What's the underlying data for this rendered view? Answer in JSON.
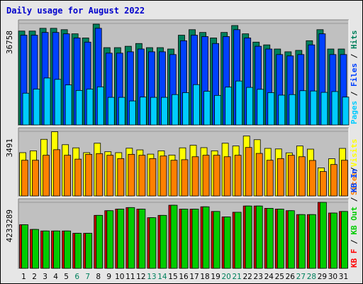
{
  "chart_data": {
    "title": "Daily usage for August 2022",
    "type": "bar",
    "x": [
      "1",
      "2",
      "3",
      "4",
      "5",
      "6",
      "7",
      "8",
      "9",
      "10",
      "11",
      "12",
      "13",
      "14",
      "15",
      "16",
      "17",
      "18",
      "19",
      "20",
      "21",
      "22",
      "23",
      "24",
      "25",
      "26",
      "27",
      "28",
      "29",
      "30",
      "31"
    ],
    "weekend_days": [
      "6",
      "7",
      "13",
      "14",
      "20",
      "21",
      "27",
      "28"
    ],
    "colors": {
      "day_label": "#000000",
      "weekend_label": "#00805c"
    },
    "panels": [
      {
        "name": "hits-files-pages",
        "ymax_label": "36758",
        "ymax": 36758,
        "legend": [
          {
            "text": "Pages",
            "color": "#00ccff"
          },
          {
            "text": "Files",
            "color": "#0040ff"
          },
          {
            "text": "Hits",
            "color": "#00805c"
          }
        ],
        "series": [
          {
            "name": "Hits",
            "color": "#00805c",
            "values": [
              34000,
              34000,
              35000,
              35000,
              34500,
              33000,
              31500,
              36500,
              28000,
              28000,
              28500,
              29500,
              28000,
              28000,
              27500,
              32500,
              34500,
              33500,
              31500,
              33500,
              36000,
              33000,
              30000,
              29000,
              27500,
              26500,
              27000,
              30500,
              34500,
              27500,
              27500
            ]
          },
          {
            "name": "Files",
            "color": "#0040ff",
            "values": [
              32500,
              32500,
              33500,
              33500,
              33000,
              31500,
              30000,
              35000,
              26000,
              26000,
              26500,
              27500,
              26500,
              26500,
              25500,
              30500,
              32500,
              32000,
              29500,
              32000,
              34500,
              31500,
              28500,
              27500,
              25500,
              25000,
              25500,
              29000,
              33000,
              25500,
              25500
            ]
          },
          {
            "name": "Pages",
            "color": "#00ccff",
            "values": [
              11500,
              13000,
              17000,
              16500,
              14500,
              12500,
              13000,
              13800,
              10000,
              10000,
              8700,
              10100,
              10000,
              10000,
              11000,
              11700,
              14600,
              12200,
              10700,
              13700,
              15900,
              13600,
              12900,
              11700,
              10800,
              11000,
              12400,
              12300,
              11800,
              12100,
              10100
            ]
          }
        ]
      },
      {
        "name": "visits-sites",
        "ymax_label": "3491",
        "ymax": 3491,
        "legend": [
          {
            "text": "Sites",
            "color": "#ff8000"
          },
          {
            "text": "/",
            "color": "#000000"
          },
          {
            "text": "Visits",
            "color": "#ffff00"
          }
        ],
        "series": [
          {
            "name": "Visits",
            "color": "#ffff00",
            "values": [
              2340,
              2440,
              3060,
              3470,
              2770,
              2600,
              2340,
              2850,
              2390,
              2340,
              2580,
              2490,
              2260,
              2440,
              2210,
              2600,
              2740,
              2610,
              2440,
              2850,
              2700,
              3240,
              3040,
              2570,
              2540,
              2330,
              2700,
              2530,
              1520,
              2010,
              2570
            ]
          },
          {
            "name": "Sites",
            "color": "#ff8000",
            "values": [
              1930,
              1930,
              2200,
              2500,
              2200,
              1990,
              2250,
              2290,
              2200,
              2020,
              2250,
              2200,
              2020,
              2160,
              1930,
              1960,
              2120,
              2200,
              2200,
              2120,
              2200,
              2620,
              2300,
              1930,
              2020,
              2200,
              2120,
              1920,
              1320,
              1700,
              1930
            ]
          }
        ]
      },
      {
        "name": "kbin-kbout",
        "ymax_label": "4233289",
        "ymax": 4233289,
        "legend": [
          {
            "text": "KB F",
            "color": "#ff0000"
          },
          {
            "text": " / ",
            "color": "#000000"
          },
          {
            "text": "KB Out",
            "color": "#00cc00"
          },
          {
            "text": " / ",
            "color": "#000000"
          },
          {
            "text": "KB In",
            "color": "#0040ff"
          }
        ],
        "series": [
          {
            "name": "KB F",
            "color": "#cc0000",
            "values": [
              2800000,
              2500000,
              2400000,
              2400000,
              2400000,
              2250000,
              2250000,
              3400000,
              3700000,
              3800000,
              3900000,
              3800000,
              3250000,
              3400000,
              4050000,
              3800000,
              3800000,
              3950000,
              3650000,
              3300000,
              3600000,
              4000000,
              4000000,
              3850000,
              3800000,
              3700000,
              3450000,
              3450000,
              4233289,
              3550000,
              3650000
            ]
          },
          {
            "name": "KB Out",
            "color": "#00cc00",
            "values": [
              2800000,
              2500000,
              2400000,
              2400000,
              2400000,
              2250000,
              2250000,
              3400000,
              3700000,
              3800000,
              3900000,
              3800000,
              3250000,
              3400000,
              4050000,
              3800000,
              3800000,
              3950000,
              3650000,
              3300000,
              3600000,
              4000000,
              4000000,
              3850000,
              3800000,
              3700000,
              3450000,
              3450000,
              4233289,
              3550000,
              3650000
            ]
          }
        ]
      }
    ]
  }
}
